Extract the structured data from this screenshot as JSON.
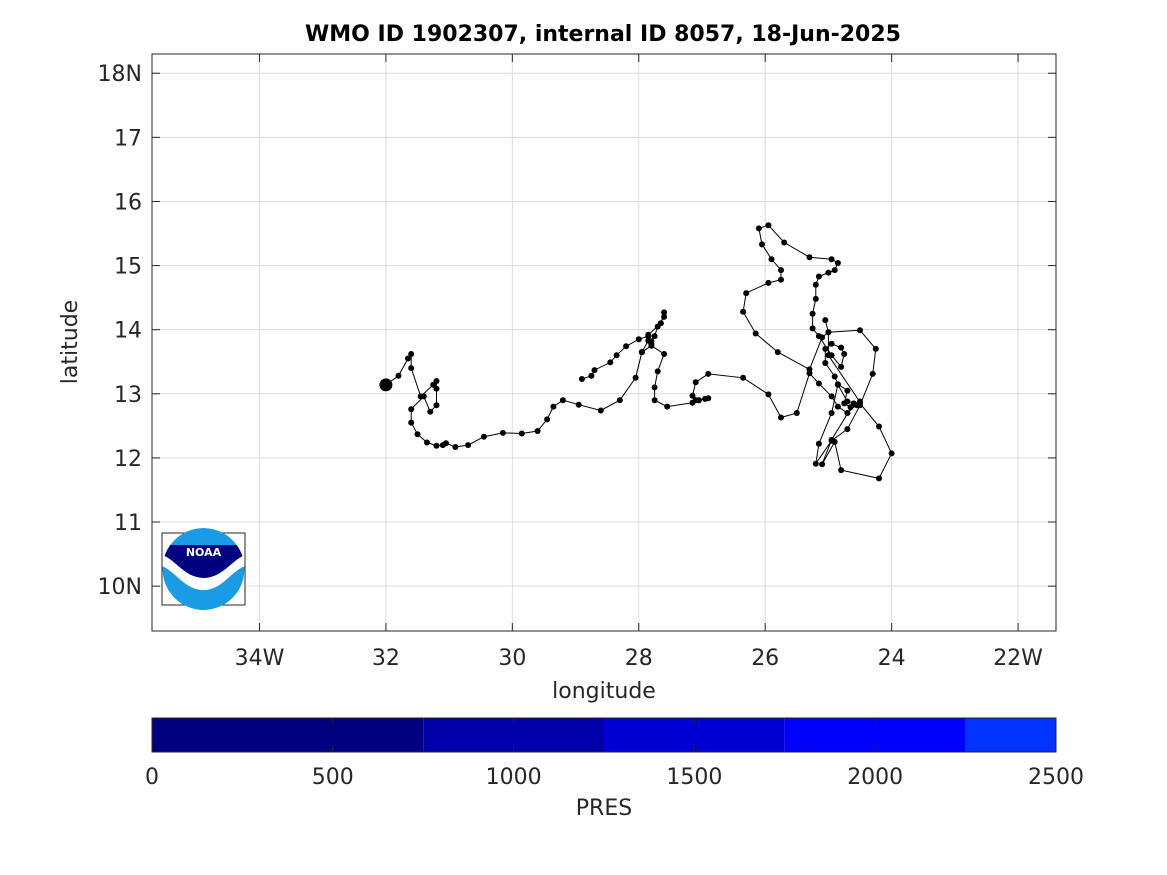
{
  "chart_data": {
    "type": "map-trajectory",
    "title": "WMO ID 1902307, internal ID 8057, 18-Jun-2025",
    "xlabel": "longitude",
    "ylabel": "latitude",
    "xlim": [
      -35.7,
      -21.4
    ],
    "ylim": [
      9.3,
      18.3
    ],
    "grid": true,
    "x_ticks": [
      {
        "value": -34,
        "label": "34W"
      },
      {
        "value": -32,
        "label": "32"
      },
      {
        "value": -30,
        "label": "30"
      },
      {
        "value": -28,
        "label": "28"
      },
      {
        "value": -26,
        "label": "26"
      },
      {
        "value": -24,
        "label": "24"
      },
      {
        "value": -22,
        "label": "22W"
      }
    ],
    "y_ticks": [
      {
        "value": 10,
        "label": "10N"
      },
      {
        "value": 11,
        "label": "11"
      },
      {
        "value": 12,
        "label": "12"
      },
      {
        "value": 13,
        "label": "13"
      },
      {
        "value": 14,
        "label": "14"
      },
      {
        "value": 15,
        "label": "15"
      },
      {
        "value": 16,
        "label": "16"
      },
      {
        "value": 17,
        "label": "17"
      },
      {
        "value": 18,
        "label": "18N"
      }
    ],
    "track": [
      [
        -32.0,
        13.14
      ],
      [
        -31.8,
        13.28
      ],
      [
        -31.65,
        13.55
      ],
      [
        -31.6,
        13.62
      ],
      [
        -31.6,
        13.4
      ],
      [
        -31.45,
        12.96
      ],
      [
        -31.25,
        13.14
      ],
      [
        -31.2,
        13.2
      ],
      [
        -31.2,
        13.08
      ],
      [
        -31.2,
        12.82
      ],
      [
        -31.3,
        12.72
      ],
      [
        -31.4,
        12.96
      ],
      [
        -31.6,
        12.76
      ],
      [
        -31.6,
        12.55
      ],
      [
        -31.5,
        12.37
      ],
      [
        -31.35,
        12.24
      ],
      [
        -31.2,
        12.19
      ],
      [
        -31.1,
        12.2
      ],
      [
        -31.05,
        12.23
      ],
      [
        -30.9,
        12.17
      ],
      [
        -30.7,
        12.2
      ],
      [
        -30.45,
        12.33
      ],
      [
        -30.15,
        12.39
      ],
      [
        -29.85,
        12.38
      ],
      [
        -29.6,
        12.42
      ],
      [
        -29.45,
        12.6
      ],
      [
        -29.35,
        12.8
      ],
      [
        -29.2,
        12.9
      ],
      [
        -28.95,
        12.83
      ],
      [
        -28.6,
        12.74
      ],
      [
        -28.3,
        12.9
      ],
      [
        -28.05,
        13.25
      ],
      [
        -27.95,
        13.65
      ],
      [
        -27.8,
        13.75
      ],
      [
        -27.6,
        13.62
      ],
      [
        -27.7,
        13.35
      ],
      [
        -27.75,
        13.1
      ],
      [
        -27.75,
        12.9
      ],
      [
        -27.55,
        12.8
      ],
      [
        -27.15,
        12.86
      ],
      [
        -27.05,
        12.9
      ],
      [
        -26.9,
        12.93
      ],
      [
        -26.95,
        12.92
      ],
      [
        -27.1,
        12.9
      ],
      [
        -27.05,
        12.9
      ],
      [
        -27.15,
        12.97
      ],
      [
        -27.1,
        13.18
      ],
      [
        -26.9,
        13.31
      ],
      [
        -26.35,
        13.25
      ],
      [
        -25.95,
        12.99
      ],
      [
        -25.75,
        12.63
      ],
      [
        -25.5,
        12.7
      ],
      [
        -25.3,
        13.32
      ],
      [
        -25.15,
        13.16
      ],
      [
        -24.95,
        12.96
      ],
      [
        -24.85,
        12.8
      ],
      [
        -24.7,
        12.7
      ],
      [
        -24.5,
        12.88
      ],
      [
        -24.55,
        12.82
      ],
      [
        -24.65,
        12.79
      ],
      [
        -24.75,
        12.85
      ],
      [
        -24.7,
        13.05
      ],
      [
        -24.85,
        13.15
      ],
      [
        -24.9,
        13.27
      ],
      [
        -25.05,
        13.48
      ],
      [
        -25.05,
        13.7
      ],
      [
        -24.95,
        13.78
      ],
      [
        -24.8,
        13.72
      ],
      [
        -24.75,
        13.62
      ],
      [
        -24.8,
        13.42
      ],
      [
        -24.95,
        13.6
      ],
      [
        -25.15,
        13.9
      ],
      [
        -25.25,
        14.02
      ],
      [
        -25.25,
        14.25
      ],
      [
        -25.2,
        14.48
      ],
      [
        -25.2,
        14.7
      ],
      [
        -25.15,
        14.83
      ],
      [
        -25.0,
        14.89
      ],
      [
        -24.9,
        14.93
      ],
      [
        -24.85,
        15.04
      ],
      [
        -24.95,
        15.1
      ],
      [
        -25.3,
        15.13
      ],
      [
        -25.7,
        15.36
      ],
      [
        -25.95,
        15.63
      ],
      [
        -26.1,
        15.58
      ],
      [
        -26.05,
        15.33
      ],
      [
        -25.9,
        15.1
      ],
      [
        -25.75,
        14.93
      ],
      [
        -25.75,
        14.78
      ],
      [
        -25.95,
        14.73
      ],
      [
        -26.3,
        14.57
      ],
      [
        -26.35,
        14.28
      ],
      [
        -26.15,
        13.94
      ],
      [
        -25.8,
        13.65
      ],
      [
        -25.3,
        13.38
      ],
      [
        -25.1,
        13.88
      ],
      [
        -25.0,
        13.96
      ],
      [
        -24.5,
        13.99
      ],
      [
        -24.25,
        13.7
      ],
      [
        -24.3,
        13.31
      ],
      [
        -24.5,
        12.82
      ],
      [
        -24.7,
        12.45
      ],
      [
        -24.95,
        12.27
      ],
      [
        -25.2,
        11.91
      ],
      [
        -25.15,
        12.22
      ],
      [
        -24.95,
        12.7
      ],
      [
        -24.85,
        13.14
      ],
      [
        -24.7,
        12.88
      ],
      [
        -24.5,
        12.85
      ],
      [
        -24.2,
        12.49
      ],
      [
        -24.0,
        12.07
      ],
      [
        -24.2,
        11.68
      ],
      [
        -24.8,
        11.81
      ],
      [
        -24.9,
        12.25
      ],
      [
        -25.1,
        11.9
      ],
      [
        -24.95,
        12.28
      ],
      [
        -24.6,
        12.85
      ],
      [
        -24.5,
        12.87
      ],
      [
        -25.0,
        13.6
      ],
      [
        -25.0,
        13.96
      ],
      [
        -25.05,
        14.15
      ]
    ],
    "track_extra": [
      [
        -28.9,
        13.23
      ],
      [
        -28.75,
        13.28
      ],
      [
        -28.7,
        13.37
      ],
      [
        -28.45,
        13.49
      ],
      [
        -28.35,
        13.6
      ],
      [
        -28.2,
        13.74
      ],
      [
        -28.0,
        13.85
      ],
      [
        -27.85,
        13.9
      ],
      [
        -27.8,
        13.82
      ],
      [
        -27.75,
        13.9
      ],
      [
        -27.7,
        14.05
      ],
      [
        -27.6,
        14.2
      ],
      [
        -27.6,
        14.27
      ],
      [
        -27.65,
        14.1
      ],
      [
        -27.85,
        13.92
      ],
      [
        -27.8,
        13.77
      ],
      [
        -27.85,
        13.83
      ],
      [
        -27.95,
        13.65
      ]
    ],
    "start_point": [
      -32.0,
      13.14
    ],
    "colorbar": {
      "label": "PRES",
      "range": [
        0,
        2500
      ],
      "ticks": [
        0,
        500,
        1000,
        1500,
        2000,
        2500
      ],
      "segments": [
        {
          "from": 0,
          "to": 750,
          "color": "#000080"
        },
        {
          "from": 750,
          "to": 1250,
          "color": "#0000aa"
        },
        {
          "from": 1250,
          "to": 1750,
          "color": "#0000d4"
        },
        {
          "from": 1750,
          "to": 2250,
          "color": "#0000ff"
        },
        {
          "from": 2250,
          "to": 2500,
          "color": "#0033ff"
        }
      ]
    },
    "logo": {
      "text": "NOAA",
      "colors": {
        "dark": "#000080",
        "light": "#1a9be6"
      }
    }
  }
}
